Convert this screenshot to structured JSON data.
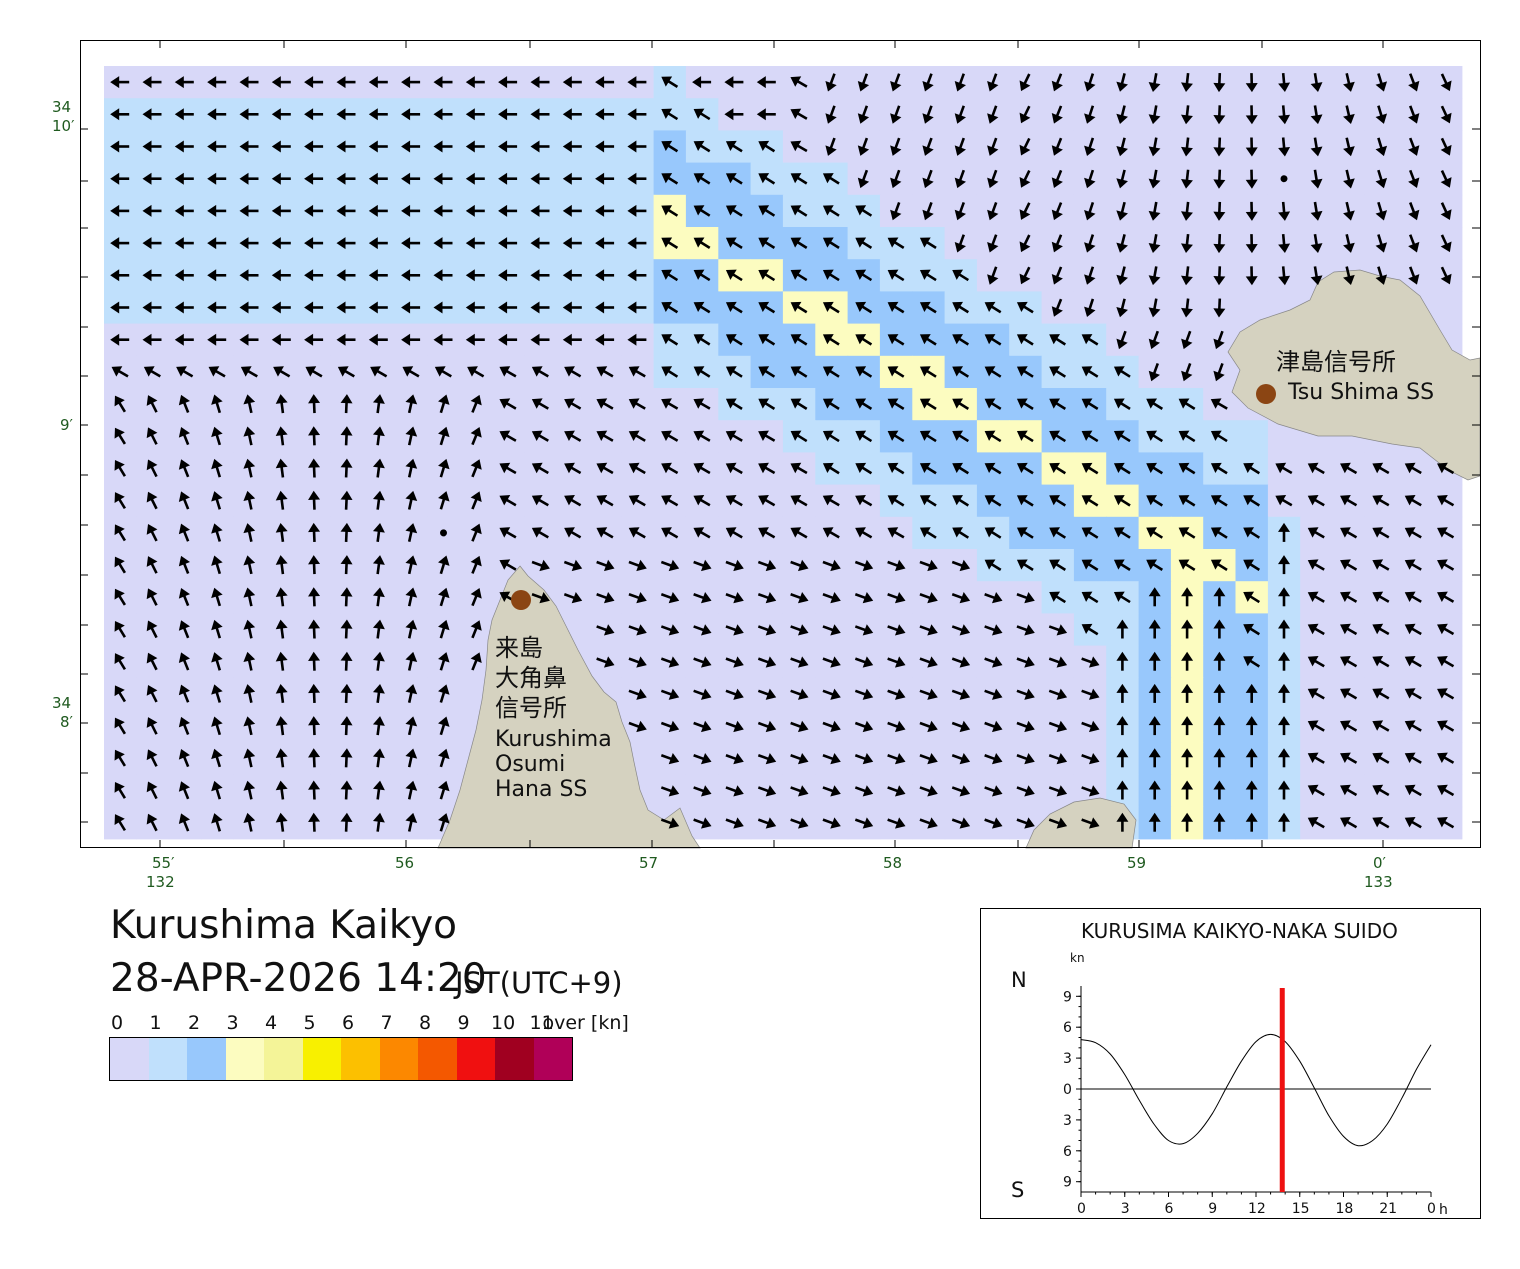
{
  "map": {
    "lat_labels": [
      {
        "deg": "34",
        "min": "10′"
      },
      {
        "deg": "",
        "min": "9′"
      },
      {
        "deg": "34",
        "min": "8′"
      }
    ],
    "lon_labels": [
      {
        "min": "55′",
        "deg": "132"
      },
      {
        "min": "56",
        "deg": ""
      },
      {
        "min": "57",
        "deg": ""
      },
      {
        "min": "58",
        "deg": ""
      },
      {
        "min": "59",
        "deg": ""
      },
      {
        "min": "0′",
        "deg": "133"
      }
    ],
    "places": {
      "tsushima": {
        "jp": "津島信号所",
        "en": "Tsu Shima SS"
      },
      "kurushima": {
        "jp_lines": [
          "来島",
          "大角鼻",
          "信号所"
        ],
        "en_lines": [
          "Kurushima",
          "Osumi",
          "Hana SS"
        ]
      }
    },
    "colors": {
      "land": "#d5d2c0",
      "station": "#8b4513",
      "arrow": "#000000"
    }
  },
  "header": {
    "title": "Kurushima Kaikyo",
    "datetime": "28-APR-2026 14:20",
    "timezone": "JST(UTC+9)"
  },
  "legend": {
    "labels": [
      "0",
      "1",
      "2",
      "3",
      "4",
      "5",
      "6",
      "7",
      "8",
      "9",
      "10",
      "11"
    ],
    "over_label": "over [kn]",
    "colors": [
      "#d8d8f8",
      "#c0e0fc",
      "#98c8fc",
      "#fcfcc0",
      "#f4f498",
      "#f8f000",
      "#fcc000",
      "#fc8800",
      "#f45800",
      "#f01010",
      "#a00020",
      "#b00058"
    ]
  },
  "tide": {
    "title": "KURUSIMA KAIKYO-NAKA SUIDO",
    "unit": "kn",
    "north_label": "N",
    "south_label": "S",
    "y_ticks": [
      "9",
      "6",
      "3",
      "0",
      "3",
      "6",
      "9"
    ],
    "x_ticks": [
      "0",
      "3",
      "6",
      "9",
      "12",
      "15",
      "18",
      "21",
      "0"
    ],
    "x_unit": "h",
    "current_hour": 13.8,
    "marker_color": "#ee1111"
  },
  "chart_data": {
    "type": "line",
    "title": "KURUSIMA KAIKYO-NAKA SUIDO",
    "ylabel": "kn",
    "xlabel": "h",
    "x": [
      0,
      1,
      2,
      3,
      4,
      5,
      6,
      7,
      8,
      9,
      10,
      11,
      12,
      13,
      14,
      15,
      16,
      17,
      18,
      19,
      20,
      21,
      22,
      23,
      24
    ],
    "series": [
      {
        "values": [
          4.8,
          4.5,
          3.4,
          1.4,
          -1.1,
          -3.4,
          -5.0,
          -5.3,
          -4.3,
          -2.4,
          0.2,
          2.7,
          4.6,
          5.3,
          4.6,
          2.7,
          0.1,
          -2.6,
          -4.6,
          -5.5,
          -5.0,
          -3.4,
          -0.9,
          1.9,
          4.3
        ]
      }
    ],
    "ylim": [
      -10,
      10
    ],
    "xlim": [
      0,
      24
    ],
    "marker_x": 13.8
  }
}
